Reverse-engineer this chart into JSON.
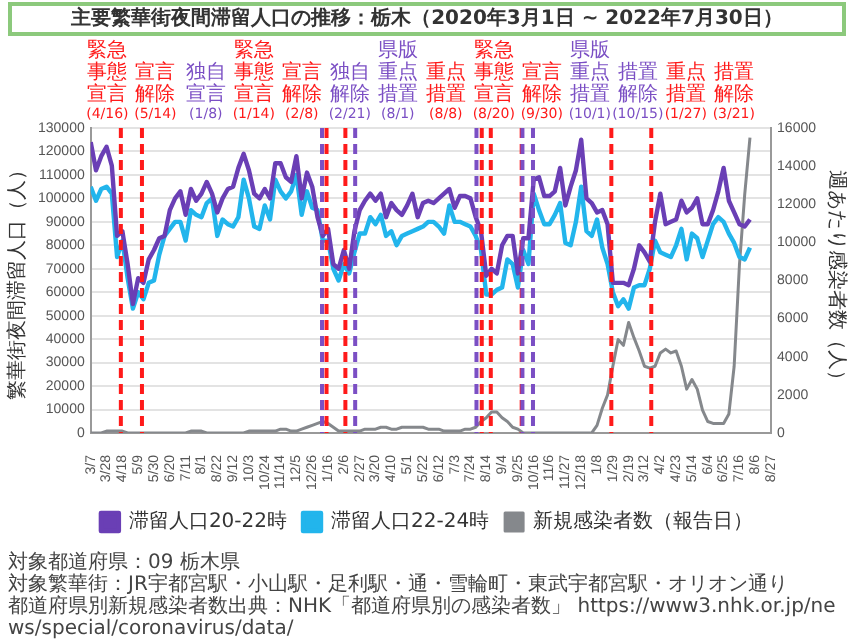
{
  "chart_data": {
    "type": "line",
    "title": "主要繁華街夜間滞留人口の推移：栃木（2020年3月1日 ~ 2022年7月30日）",
    "ylabel": "繁華街夜間滞留人口（人）",
    "y2label": "週あたり感染者数（人）",
    "x": [
      "2020-03-07",
      "2020-03-14",
      "2020-03-21",
      "2020-03-28",
      "2020-04-04",
      "2020-04-11",
      "2020-04-18",
      "2020-04-25",
      "2020-05-02",
      "2020-05-09",
      "2020-05-16",
      "2020-05-23",
      "2020-05-30",
      "2020-06-06",
      "2020-06-13",
      "2020-06-20",
      "2020-06-27",
      "2020-07-04",
      "2020-07-11",
      "2020-07-18",
      "2020-07-25",
      "2020-08-01",
      "2020-08-08",
      "2020-08-15",
      "2020-08-22",
      "2020-08-29",
      "2020-09-05",
      "2020-09-12",
      "2020-09-19",
      "2020-09-26",
      "2020-10-03",
      "2020-10-10",
      "2020-10-17",
      "2020-10-24",
      "2020-10-31",
      "2020-11-07",
      "2020-11-14",
      "2020-11-21",
      "2020-11-28",
      "2020-12-05",
      "2020-12-12",
      "2020-12-19",
      "2020-12-26",
      "2021-01-02",
      "2021-01-09",
      "2021-01-16",
      "2021-01-23",
      "2021-01-30",
      "2021-02-06",
      "2021-02-13",
      "2021-02-20",
      "2021-02-27",
      "2021-03-06",
      "2021-03-13",
      "2021-03-20",
      "2021-03-27",
      "2021-04-03",
      "2021-04-10",
      "2021-04-17",
      "2021-04-24",
      "2021-05-01",
      "2021-05-08",
      "2021-05-15",
      "2021-05-22",
      "2021-05-29",
      "2021-06-05",
      "2021-06-12",
      "2021-06-19",
      "2021-06-26",
      "2021-07-03",
      "2021-07-10",
      "2021-07-17",
      "2021-07-24",
      "2021-07-31",
      "2021-08-07",
      "2021-08-14",
      "2021-08-21",
      "2021-08-28",
      "2021-09-04",
      "2021-09-11",
      "2021-09-18",
      "2021-09-25",
      "2021-10-02",
      "2021-10-09",
      "2021-10-16",
      "2021-10-23",
      "2021-10-30",
      "2021-11-06",
      "2021-11-13",
      "2021-11-20",
      "2021-11-27",
      "2021-12-04",
      "2021-12-11",
      "2021-12-18",
      "2021-12-25",
      "2022-01-01",
      "2022-01-08",
      "2022-01-15",
      "2022-01-22",
      "2022-01-29",
      "2022-02-05",
      "2022-02-12",
      "2022-02-19",
      "2022-02-26",
      "2022-03-05",
      "2022-03-12",
      "2022-03-19",
      "2022-03-26",
      "2022-04-02",
      "2022-04-09",
      "2022-04-16",
      "2022-04-23",
      "2022-04-30",
      "2022-05-07",
      "2022-05-14",
      "2022-05-21",
      "2022-05-28",
      "2022-06-04",
      "2022-06-11",
      "2022-06-18",
      "2022-06-25",
      "2022-07-02",
      "2022-07-09",
      "2022-07-16",
      "2022-07-23",
      "2022-07-30"
    ],
    "series": [
      {
        "name": "滞留人口20-22時",
        "color": "#6a3fb5",
        "values": [
          124000,
          112000,
          118000,
          122000,
          114000,
          84000,
          86000,
          72000,
          55000,
          66000,
          64000,
          74000,
          78000,
          83000,
          84000,
          95000,
          100000,
          103000,
          93000,
          104000,
          99000,
          102000,
          107000,
          102000,
          94000,
          100000,
          104000,
          105000,
          113000,
          119000,
          112000,
          102000,
          100000,
          104000,
          100000,
          115000,
          115000,
          109000,
          107000,
          118000,
          100000,
          111000,
          105000,
          92000,
          84000,
          87000,
          72000,
          70000,
          78000,
          70000,
          86000,
          95000,
          99000,
          102000,
          99000,
          102000,
          92000,
          98000,
          95000,
          93000,
          97000,
          102000,
          92000,
          98000,
          99000,
          98000,
          100000,
          102000,
          104000,
          96000,
          101000,
          101000,
          100000,
          92000,
          86000,
          67000,
          70000,
          68000,
          80000,
          84000,
          84000,
          68000,
          83000,
          83000,
          108000,
          109000,
          101000,
          101000,
          103000,
          113000,
          97000,
          105000,
          112000,
          125000,
          100000,
          98000,
          94000,
          95000,
          89000,
          64000,
          64000,
          64000,
          63000,
          70000,
          80000,
          77000,
          73000,
          90000,
          102000,
          89000,
          90000,
          91000,
          99000,
          94000,
          96000,
          100000,
          89000,
          89000,
          95000,
          103000,
          113000,
          99000,
          94000,
          89000,
          88000,
          91000
        ]
      },
      {
        "name": "滞留人口22-24時",
        "color": "#22b5ec",
        "values": [
          105000,
          99000,
          104000,
          105000,
          102000,
          75000,
          82000,
          66000,
          53000,
          60000,
          57000,
          64000,
          65000,
          76000,
          84000,
          87000,
          90000,
          90000,
          82000,
          95000,
          93000,
          92000,
          98000,
          100000,
          84000,
          91000,
          89000,
          88000,
          92000,
          108000,
          100000,
          88000,
          87000,
          97000,
          91000,
          108000,
          103000,
          100000,
          103000,
          110000,
          93000,
          103000,
          96000,
          95000,
          82000,
          82000,
          70000,
          65000,
          72000,
          68000,
          77000,
          85000,
          85000,
          92000,
          89000,
          93000,
          84000,
          86000,
          80000,
          84000,
          85000,
          86000,
          87000,
          88000,
          90000,
          90000,
          88000,
          85000,
          97000,
          90000,
          90000,
          89000,
          88000,
          84000,
          78000,
          59000,
          59000,
          61000,
          62000,
          74000,
          72000,
          62000,
          78000,
          72000,
          102000,
          95000,
          89000,
          89000,
          93000,
          98000,
          81000,
          80000,
          90000,
          105000,
          86000,
          84000,
          91000,
          79000,
          72000,
          60000,
          54000,
          57000,
          53000,
          62000,
          63000,
          63000,
          70000,
          82000,
          77000,
          76000,
          75000,
          80000,
          87000,
          74000,
          85000,
          83000,
          75000,
          82000,
          89000,
          92000,
          90000,
          85000,
          81000,
          75000,
          74000,
          79000
        ]
      },
      {
        "name": "新規感染者数（報告日）",
        "color": "#85888c",
        "axis": "y2",
        "values": [
          0,
          0,
          0,
          100,
          100,
          100,
          100,
          0,
          0,
          0,
          0,
          0,
          0,
          0,
          0,
          0,
          0,
          0,
          0,
          100,
          100,
          100,
          0,
          0,
          0,
          0,
          0,
          0,
          0,
          0,
          100,
          100,
          100,
          100,
          100,
          100,
          200,
          200,
          100,
          100,
          200,
          300,
          400,
          500,
          600,
          500,
          300,
          100,
          100,
          100,
          100,
          100,
          200,
          200,
          200,
          300,
          300,
          200,
          200,
          300,
          300,
          300,
          300,
          300,
          200,
          200,
          200,
          100,
          100,
          100,
          100,
          200,
          200,
          300,
          600,
          800,
          1100,
          1100,
          800,
          600,
          300,
          200,
          0,
          0,
          0,
          0,
          0,
          0,
          0,
          0,
          0,
          0,
          0,
          0,
          0,
          0,
          400,
          1300,
          2000,
          3500,
          4900,
          4600,
          5800,
          5000,
          4300,
          3500,
          3400,
          3500,
          4200,
          4400,
          4200,
          4300,
          3500,
          2300,
          2800,
          2300,
          1200,
          600,
          500,
          500,
          500,
          1000,
          3500,
          8800,
          12500,
          15500
        ]
      }
    ],
    "xlim": [
      "2020-03-07",
      "2022-08-27"
    ],
    "xticks": [
      {
        "value": "2020-03-07",
        "label": "3/7"
      },
      {
        "value": "2020-03-28",
        "label": "3/28"
      },
      {
        "value": "2020-04-18",
        "label": "4/18"
      },
      {
        "value": "2020-05-09",
        "label": "5/9"
      },
      {
        "value": "2020-05-30",
        "label": "5/30"
      },
      {
        "value": "2020-06-20",
        "label": "6/20"
      },
      {
        "value": "2020-07-11",
        "label": "7/11"
      },
      {
        "value": "2020-08-01",
        "label": "8/1"
      },
      {
        "value": "2020-08-22",
        "label": "8/22"
      },
      {
        "value": "2020-09-12",
        "label": "9/12"
      },
      {
        "value": "2020-10-03",
        "label": "10/3"
      },
      {
        "value": "2020-10-24",
        "label": "10/24"
      },
      {
        "value": "2020-11-14",
        "label": "11/14"
      },
      {
        "value": "2020-12-05",
        "label": "12/5"
      },
      {
        "value": "2020-12-26",
        "label": "12/26"
      },
      {
        "value": "2021-01-16",
        "label": "1/16"
      },
      {
        "value": "2021-02-06",
        "label": "2/6"
      },
      {
        "value": "2021-02-27",
        "label": "2/27"
      },
      {
        "value": "2021-03-20",
        "label": "3/20"
      },
      {
        "value": "2021-04-10",
        "label": "4/10"
      },
      {
        "value": "2021-05-01",
        "label": "5/1"
      },
      {
        "value": "2021-05-22",
        "label": "5/22"
      },
      {
        "value": "2021-06-12",
        "label": "6/12"
      },
      {
        "value": "2021-07-03",
        "label": "7/3"
      },
      {
        "value": "2021-07-24",
        "label": "7/24"
      },
      {
        "value": "2021-08-14",
        "label": "8/14"
      },
      {
        "value": "2021-09-04",
        "label": "9/4"
      },
      {
        "value": "2021-09-25",
        "label": "9/25"
      },
      {
        "value": "2021-10-16",
        "label": "10/16"
      },
      {
        "value": "2021-11-06",
        "label": "11/6"
      },
      {
        "value": "2021-11-27",
        "label": "11/27"
      },
      {
        "value": "2021-12-18",
        "label": "12/18"
      },
      {
        "value": "2022-01-08",
        "label": "1/8"
      },
      {
        "value": "2022-01-29",
        "label": "1/29"
      },
      {
        "value": "2022-02-19",
        "label": "2/19"
      },
      {
        "value": "2022-03-12",
        "label": "3/12"
      },
      {
        "value": "2022-04-02",
        "label": "4/2"
      },
      {
        "value": "2022-04-23",
        "label": "4/23"
      },
      {
        "value": "2022-05-14",
        "label": "5/14"
      },
      {
        "value": "2022-06-04",
        "label": "6/4"
      },
      {
        "value": "2022-06-25",
        "label": "6/25"
      },
      {
        "value": "2022-07-16",
        "label": "7/16"
      },
      {
        "value": "2022-08-06",
        "label": "8/6"
      },
      {
        "value": "2022-08-27",
        "label": "8/27"
      }
    ],
    "ylim": [
      0,
      130000
    ],
    "yticks": [
      0,
      10000,
      20000,
      30000,
      40000,
      50000,
      60000,
      70000,
      80000,
      90000,
      100000,
      110000,
      120000,
      130000
    ],
    "y2lim": [
      0,
      16000
    ],
    "y2ticks": [
      0,
      2000,
      4000,
      6000,
      8000,
      10000,
      12000,
      14000,
      16000
    ],
    "ref_lines": [
      {
        "axis": "x",
        "value": "2020-04-16",
        "label": "緊急事態宣言(4/16)",
        "color": "#ff1a1a",
        "line_style": "dashed"
      },
      {
        "axis": "x",
        "value": "2020-05-14",
        "label": "宣言解除(5/14)",
        "color": "#ff1a1a",
        "line_style": "dashed"
      },
      {
        "axis": "x",
        "value": "2021-01-08",
        "label": "独自宣言(1/8)",
        "color": "#7b4fc4",
        "line_style": "dashed"
      },
      {
        "axis": "x",
        "value": "2021-01-14",
        "label": "緊急事態宣言(1/14)",
        "color": "#ff1a1a",
        "line_style": "dashed"
      },
      {
        "axis": "x",
        "value": "2021-02-08",
        "label": "宣言解除(2/8)",
        "color": "#ff1a1a",
        "line_style": "dashed"
      },
      {
        "axis": "x",
        "value": "2021-02-21",
        "label": "独自解除(2/21)",
        "color": "#7b4fc4",
        "line_style": "dashed"
      },
      {
        "axis": "x",
        "value": "2021-08-01",
        "label": "県版重点措置(8/1)",
        "color": "#7b4fc4",
        "line_style": "dashed"
      },
      {
        "axis": "x",
        "value": "2021-08-08",
        "label": "重点措置(8/8)",
        "color": "#ff1a1a",
        "line_style": "dashed"
      },
      {
        "axis": "x",
        "value": "2021-08-20",
        "label": "緊急事態宣言(8/20)",
        "color": "#ff1a1a",
        "line_style": "dashed"
      },
      {
        "axis": "x",
        "value": "2021-09-30",
        "label": "宣言解除(9/30)",
        "color": "#ff1a1a",
        "line_style": "dashed"
      },
      {
        "axis": "x",
        "value": "2021-10-01",
        "label": "県版重点措置(10/1)",
        "color": "#7b4fc4",
        "line_style": "dashed"
      },
      {
        "axis": "x",
        "value": "2021-10-15",
        "label": "措置解除(10/15)",
        "color": "#7b4fc4",
        "line_style": "dashed"
      },
      {
        "axis": "x",
        "value": "2022-01-27",
        "label": "重点措置(1/27)",
        "color": "#ff1a1a",
        "line_style": "dashed"
      },
      {
        "axis": "x",
        "value": "2022-03-21",
        "label": "措置解除(3/21)",
        "color": "#ff1a1a",
        "line_style": "dashed"
      }
    ],
    "grid": "y",
    "legend": "bottom",
    "annotations": [
      "対象都道府県：09 栃木県",
      "対象繁華街：JR宇都宮駅・小山駅・足利駅・通・雪輪町・東武宇都宮駅・オリオン通り",
      "都道府県別新規感染者数出典：NHK「都道府県別の感染者数」 https://www3.nhk.or.jp/news/special/coronavirus/data/"
    ]
  }
}
